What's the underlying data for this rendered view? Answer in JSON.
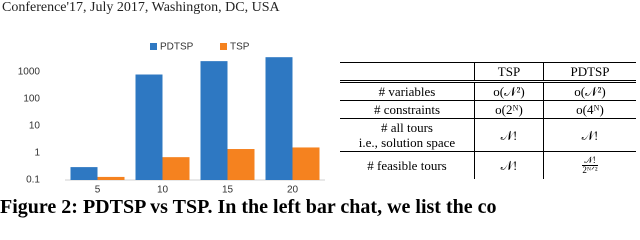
{
  "header": {
    "text": "Conference'17, July 2017, Washington, DC, USA"
  },
  "chart_data": {
    "type": "bar",
    "log_scale": true,
    "grid": false,
    "categories": [
      "5",
      "10",
      "15",
      "20"
    ],
    "series": [
      {
        "name": "PDTSP",
        "color": "#2e78c2",
        "values": [
          0.3,
          800,
          2500,
          3500
        ]
      },
      {
        "name": "TSP",
        "color": "#f5821f",
        "values": [
          0.13,
          0.7,
          1.4,
          1.6
        ]
      }
    ],
    "ylim": [
      0.1,
      5000
    ],
    "yticks": [
      0.1,
      1,
      10,
      100,
      1000
    ],
    "legend": "top"
  },
  "table": {
    "header": [
      "",
      "TSP",
      "PDTSP"
    ],
    "rows": [
      [
        "# variables",
        "o(𝒩²)",
        "o(𝒩²)"
      ],
      [
        "# constraints",
        "o(2ᴺ)",
        "o(4ᴺ)"
      ],
      [
        "# all tours",
        "𝒩!",
        "𝒩!"
      ],
      [
        "# feasible tours",
        "𝒩!",
        {
          "num": "𝒩!",
          "den": "2ᴺᐟ²"
        }
      ]
    ],
    "row_notes": {
      "2": "i.e., solution space"
    }
  },
  "caption": {
    "text": "Figure 2: PDTSP vs TSP. In the left bar chat, we list the co"
  }
}
